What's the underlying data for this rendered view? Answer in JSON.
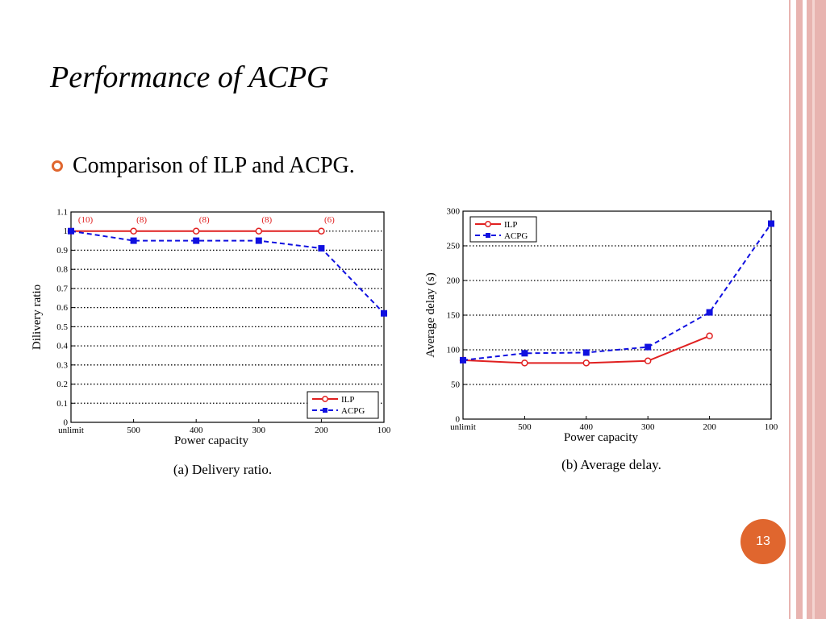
{
  "slide": {
    "title": "Performance of ACPG",
    "bullet": "Comparison of ILP and ACPG.",
    "page_number": "13",
    "accent_color": "#e0662e",
    "stripe_color": "#e8b4b0"
  },
  "chart_data": [
    {
      "type": "line",
      "caption": "(a) Delivery ratio.",
      "xlabel": "Power capacity",
      "ylabel": "Dilivery ratio",
      "categories": [
        "unlimit",
        "500",
        "400",
        "300",
        "200",
        "100"
      ],
      "ylim": [
        0,
        1.1
      ],
      "yticks": [
        "0",
        "0.1",
        "0.2",
        "0.3",
        "0.4",
        "0.5",
        "0.6",
        "0.7",
        "0.8",
        "0.9",
        "1",
        "1.1"
      ],
      "grid": true,
      "legend_position": "bottom-right",
      "series": [
        {
          "name": "ILP",
          "values": [
            1,
            1,
            1,
            1,
            1,
            null
          ],
          "color": "#e02020",
          "marker": "circle",
          "dash": "solid"
        },
        {
          "name": "ACPG",
          "values": [
            1,
            0.95,
            0.95,
            0.95,
            0.91,
            0.57
          ],
          "color": "#1010e0",
          "marker": "square",
          "dash": "dashed"
        }
      ],
      "annotations": [
        "(10)",
        "(8)",
        "(8)",
        "(8)",
        "(6)"
      ]
    },
    {
      "type": "line",
      "caption": "(b) Average delay.",
      "xlabel": "Power capacity",
      "ylabel": "Average delay (s)",
      "categories": [
        "unlimit",
        "500",
        "400",
        "300",
        "200",
        "100"
      ],
      "ylim": [
        0,
        300
      ],
      "yticks": [
        "0",
        "50",
        "100",
        "150",
        "200",
        "250",
        "300"
      ],
      "grid": true,
      "legend_position": "top-left",
      "series": [
        {
          "name": "ILP",
          "values": [
            85,
            81,
            81,
            84,
            120,
            null
          ],
          "color": "#e02020",
          "marker": "circle",
          "dash": "solid"
        },
        {
          "name": "ACPG",
          "values": [
            85,
            95,
            96,
            104,
            154,
            282
          ],
          "color": "#1010e0",
          "marker": "square",
          "dash": "dashed"
        }
      ]
    }
  ]
}
